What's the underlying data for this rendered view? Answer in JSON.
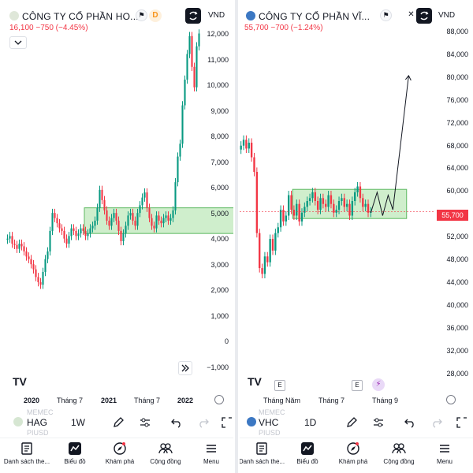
{
  "colors": {
    "down": "#f23645",
    "up": "#089981",
    "box_fill": "#a7e0a3",
    "box_stroke": "#5cb860",
    "text": "#131722"
  },
  "left": {
    "title": "CÔNG TY CỔ PHẦN HO...",
    "price_line": "16,100  −750 (−4.45%)",
    "badge_d": "D",
    "currency": "VND",
    "y_labels": [
      "12,000",
      "11,000",
      "10,000",
      "9,000",
      "8,000",
      "7,000",
      "6,000",
      "5,000",
      "4,000",
      "3,000",
      "2,000",
      "1,000",
      "0",
      "−1,000"
    ],
    "x_labels": [
      "2020",
      "Tháng 7",
      "2021",
      "Tháng 7",
      "2022"
    ],
    "x_bold": [
      true,
      false,
      true,
      false,
      true
    ],
    "toolbar": {
      "symbol": "HAG",
      "timeframe": "1W",
      "ghost_top": "MEMEC",
      "ghost_bottom": "PIUSD"
    },
    "fwd_icon": "double-chevron-right-icon"
  },
  "right": {
    "title": "CÔNG TY CỔ PHẦN VĨ...",
    "price_line": "55,700  −700 (−1.24%)",
    "currency": "VND",
    "y_labels": [
      "88,000",
      "84,000",
      "80,000",
      "76,000",
      "72,000",
      "68,000",
      "64,000",
      "60,000",
      "56,000",
      "52,000",
      "48,000",
      "44,000",
      "40,000",
      "36,000",
      "32,000",
      "28,000"
    ],
    "last_price": "55,700",
    "x_labels": [
      "Tháng Năm",
      "Tháng 7",
      "Tháng 9"
    ],
    "event_badges": [
      "E",
      "E"
    ],
    "toolbar": {
      "symbol": "VHC",
      "timeframe": "1D",
      "ghost_top": "MEMEC",
      "ghost_bottom": "PIUSD"
    }
  },
  "nav": {
    "items": [
      {
        "label": "Danh sách the...",
        "icon": "watchlist-icon"
      },
      {
        "label": "Biểu đồ",
        "icon": "chart-icon"
      },
      {
        "label": "Khám phá",
        "icon": "compass-icon"
      },
      {
        "label": "Cộng đồng",
        "icon": "community-icon"
      },
      {
        "label": "Menu",
        "icon": "menu-icon"
      }
    ]
  },
  "chart_data": [
    {
      "type": "candlestick",
      "symbol": "HAG",
      "interval": "1W",
      "y_range": [
        -1000,
        12500
      ],
      "x_ticks": [
        "2020",
        "Tháng 7",
        "2021",
        "Tháng 7",
        "2022"
      ],
      "last_price": 16100,
      "annotations": [
        {
          "type": "rectangle",
          "y_range": [
            4500,
            5500
          ],
          "color": "green"
        }
      ],
      "approx_close": [
        4300,
        4400,
        4100,
        4050,
        3900,
        4100,
        4000,
        3800,
        3600,
        3500,
        3300,
        3100,
        2800,
        2600,
        2500,
        3000,
        3500,
        3800,
        4600,
        5300,
        5100,
        4900,
        4700,
        4600,
        4300,
        4100,
        4400,
        4700,
        4600,
        4400,
        4500,
        4700,
        4600,
        4400,
        4500,
        4700,
        4800,
        5000,
        5500,
        6200,
        5800,
        5400,
        5000,
        4800,
        5100,
        5300,
        5000,
        4600,
        4200,
        4500,
        4800,
        5200,
        5300,
        5000,
        4800,
        5300,
        5600,
        5900,
        6100,
        5500,
        5100,
        4800,
        4700,
        5200,
        5000,
        4900,
        5100,
        5200,
        5000,
        5100,
        5400,
        6500,
        7500,
        8000,
        9500,
        10500,
        11500,
        12200,
        11000,
        10200,
        11800,
        12300
      ]
    },
    {
      "type": "candlestick",
      "symbol": "VHC",
      "interval": "1D",
      "y_range": [
        26000,
        89000
      ],
      "x_ticks": [
        "Tháng Năm",
        "Tháng 7",
        "Tháng 9"
      ],
      "last_price": 55700,
      "annotations": [
        {
          "type": "rectangle",
          "y_range": [
            54500,
            59500
          ],
          "color": "green"
        },
        {
          "type": "path",
          "points_y": [
            55500,
            59000,
            55000,
            58500,
            56000,
            79000
          ]
        }
      ],
      "approx_close": [
        67000,
        68000,
        66500,
        67500,
        65000,
        62500,
        52000,
        46000,
        45000,
        48000,
        47000,
        51000,
        49000,
        52000,
        53000,
        56000,
        54000,
        55000,
        58500,
        56000,
        55000,
        57000,
        54000,
        55500,
        56500,
        57500,
        58000,
        59000,
        57500,
        56000,
        58000,
        57000,
        56500,
        58500,
        57000,
        55500,
        56000,
        57500,
        58000,
        56500,
        57000,
        55000,
        57500,
        59000,
        60000,
        58000,
        56500,
        57000,
        55500,
        55700
      ]
    }
  ]
}
